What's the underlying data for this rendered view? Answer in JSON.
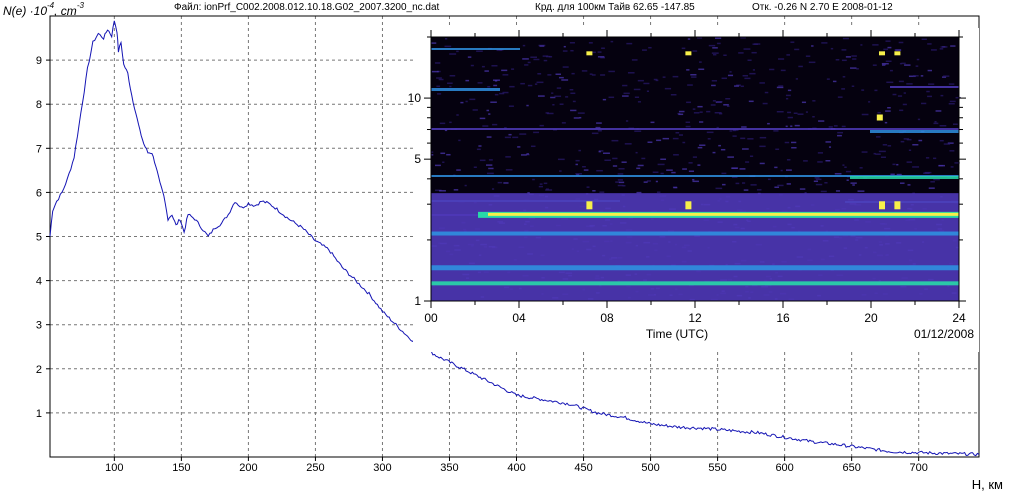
{
  "header": {
    "file": "Файл: ionPrf_C002.2008.012.10.18.G02_2007.3200_nc.dat",
    "coords": "Крд. для 100км Тайв 62.65 -147.85",
    "offset": "Отк. -0.26 N 2.70 E 2008-01-12"
  },
  "y_axis": {
    "base": "N(e) ·10",
    "exp1": "-4",
    "unit": ", cm",
    "exp2": "-3"
  },
  "x_axis_name": "H, км",
  "chart_data": [
    {
      "type": "line",
      "title": "",
      "xlabel": "H, км",
      "ylabel": "N(e) ·10-4, cm-3",
      "xlim": [
        52,
        745
      ],
      "ylim": [
        0,
        10
      ],
      "grid": true,
      "x_ticks": [
        100,
        150,
        200,
        250,
        300,
        350,
        400,
        450,
        500,
        550,
        600,
        650,
        700
      ],
      "y_ticks": [
        1,
        2,
        3,
        4,
        5,
        6,
        7,
        8,
        9
      ],
      "line_color": "#1414b4",
      "series": [
        {
          "x": [
            52,
            54,
            57,
            61,
            65,
            70,
            75,
            80,
            84,
            88,
            92,
            95,
            98,
            100,
            102,
            103,
            105,
            107,
            110,
            113,
            116,
            119,
            122,
            125,
            128,
            131,
            134,
            137,
            140,
            143,
            146,
            149,
            152,
            155,
            160,
            165,
            170,
            175,
            180,
            185,
            190,
            195,
            200,
            205,
            210,
            215,
            220,
            230,
            240,
            250,
            260,
            270,
            280,
            290,
            300,
            310,
            320,
            340,
            360,
            380,
            400,
            420,
            440,
            460,
            480,
            500,
            520,
            540,
            560,
            580,
            600,
            620,
            640,
            660,
            680,
            700,
            720,
            745
          ],
          "y": [
            5.0,
            5.6,
            5.8,
            6.0,
            6.3,
            6.8,
            7.8,
            8.8,
            9.4,
            9.6,
            9.5,
            9.7,
            9.55,
            9.9,
            9.65,
            9.2,
            9.4,
            8.9,
            8.7,
            8.2,
            7.8,
            7.4,
            7.1,
            6.9,
            6.9,
            6.6,
            6.2,
            5.9,
            5.4,
            5.5,
            5.25,
            5.4,
            5.1,
            5.5,
            5.4,
            5.2,
            5.0,
            5.2,
            5.3,
            5.5,
            5.8,
            5.65,
            5.75,
            5.7,
            5.8,
            5.75,
            5.65,
            5.4,
            5.2,
            4.9,
            4.7,
            4.3,
            4.0,
            3.7,
            3.3,
            3.0,
            2.7,
            2.3,
            2.0,
            1.7,
            1.4,
            1.3,
            1.2,
            1.0,
            0.9,
            0.75,
            0.68,
            0.65,
            0.6,
            0.55,
            0.45,
            0.35,
            0.28,
            0.2,
            0.12,
            0.1,
            0.08,
            0.06
          ]
        }
      ]
    },
    {
      "type": "heatmap",
      "title": "",
      "xlabel": "Time (UTC)",
      "ylabel": "",
      "date_label": "01/12/2008",
      "xlim": [
        0,
        24
      ],
      "x_ticks": [
        "00",
        "04",
        "08",
        "12",
        "16",
        "20",
        "24"
      ],
      "y_scale": "log",
      "y_ticks": [
        {
          "value": 1,
          "label": "1"
        },
        {
          "value": 5,
          "label": "5"
        },
        {
          "value": 10,
          "label": "10"
        }
      ],
      "colors": [
        "#05010f",
        "#2a1a6e",
        "#4f39b8",
        "#2f8fe0",
        "#28d8a8",
        "#f7f04a"
      ]
    }
  ]
}
